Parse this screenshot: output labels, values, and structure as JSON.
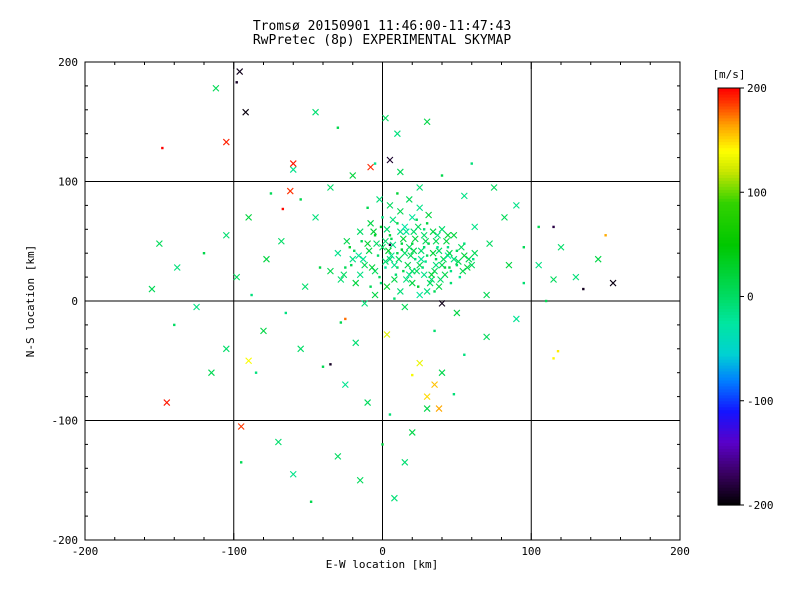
{
  "chart_data": {
    "type": "scatter",
    "title": "Tromsø 20150901 11:46:00-11:47:43",
    "subtitle": "RwPretec (8p) EXPERIMENTAL SKYMAP",
    "xlabel": "E-W location [km]",
    "ylabel": "N-S location [km]",
    "xlim": [
      -200,
      200
    ],
    "ylim": [
      -200,
      200
    ],
    "xticks": [
      -200,
      -100,
      0,
      100,
      200
    ],
    "yticks": [
      -200,
      -100,
      0,
      100,
      200
    ],
    "grid": true,
    "marker_types": {
      "x": "cross",
      "d": "dot"
    },
    "colorbar": {
      "label": "[m/s]",
      "min": -200,
      "max": 200,
      "ticks": [
        200,
        100,
        0,
        -100,
        -200
      ],
      "stops": [
        {
          "v": -200,
          "color": "#000000"
        },
        {
          "v": -170,
          "color": "#38005e"
        },
        {
          "v": -140,
          "color": "#5a00c8"
        },
        {
          "v": -110,
          "color": "#1414ff"
        },
        {
          "v": -80,
          "color": "#0080ff"
        },
        {
          "v": -55,
          "color": "#00d2d2"
        },
        {
          "v": -25,
          "color": "#00e6a0"
        },
        {
          "v": 0,
          "color": "#00dc64"
        },
        {
          "v": 50,
          "color": "#00c800"
        },
        {
          "v": 90,
          "color": "#32d200"
        },
        {
          "v": 120,
          "color": "#c8e600"
        },
        {
          "v": 140,
          "color": "#ffff00"
        },
        {
          "v": 165,
          "color": "#ffa000"
        },
        {
          "v": 185,
          "color": "#ff3c00"
        },
        {
          "v": 200,
          "color": "#ff0000"
        }
      ]
    },
    "points": [
      [
        -5,
        25,
        5,
        "x"
      ],
      [
        2,
        33,
        -5,
        "x"
      ],
      [
        10,
        28,
        10,
        "d"
      ],
      [
        15,
        40,
        0,
        "x"
      ],
      [
        8,
        18,
        15,
        "x"
      ],
      [
        22,
        35,
        -10,
        "d"
      ],
      [
        -12,
        30,
        8,
        "x"
      ],
      [
        0,
        45,
        2,
        "x"
      ],
      [
        5,
        55,
        20,
        "d"
      ],
      [
        18,
        22,
        -15,
        "x"
      ],
      [
        25,
        30,
        12,
        "x"
      ],
      [
        30,
        38,
        3,
        "d"
      ],
      [
        12,
        8,
        -8,
        "x"
      ],
      [
        20,
        15,
        18,
        "x"
      ],
      [
        -8,
        12,
        6,
        "d"
      ],
      [
        -15,
        22,
        -12,
        "x"
      ],
      [
        35,
        25,
        9,
        "x"
      ],
      [
        28,
        45,
        -3,
        "d"
      ],
      [
        14,
        52,
        22,
        "x"
      ],
      [
        6,
        38,
        -18,
        "x"
      ],
      [
        -2,
        20,
        4,
        "d"
      ],
      [
        40,
        30,
        11,
        "x"
      ],
      [
        33,
        18,
        -6,
        "x"
      ],
      [
        45,
        28,
        16,
        "d"
      ],
      [
        38,
        42,
        1,
        "x"
      ],
      [
        -20,
        35,
        -14,
        "x"
      ],
      [
        -25,
        28,
        7,
        "d"
      ],
      [
        -10,
        48,
        25,
        "x"
      ],
      [
        3,
        60,
        -2,
        "x"
      ],
      [
        10,
        65,
        13,
        "d"
      ],
      [
        16,
        58,
        -20,
        "x"
      ],
      [
        24,
        62,
        5,
        "x"
      ],
      [
        -5,
        55,
        30,
        "d"
      ],
      [
        48,
        35,
        -9,
        "x"
      ],
      [
        42,
        22,
        14,
        "x"
      ],
      [
        50,
        30,
        2,
        "d"
      ],
      [
        -30,
        40,
        -16,
        "x"
      ],
      [
        -18,
        15,
        19,
        "x"
      ],
      [
        8,
        2,
        -4,
        "d"
      ],
      [
        15,
        -5,
        10,
        "x"
      ],
      [
        25,
        5,
        -22,
        "x"
      ],
      [
        35,
        8,
        6,
        "d"
      ],
      [
        -5,
        5,
        17,
        "x"
      ],
      [
        -12,
        -2,
        -7,
        "x"
      ],
      [
        20,
        48,
        23,
        "d"
      ],
      [
        28,
        55,
        -1,
        "x"
      ],
      [
        36,
        50,
        8,
        "x"
      ],
      [
        44,
        45,
        -13,
        "d"
      ],
      [
        55,
        38,
        21,
        "x"
      ],
      [
        60,
        30,
        4,
        "x"
      ],
      [
        52,
        20,
        -19,
        "d"
      ],
      [
        -35,
        25,
        12,
        "x"
      ],
      [
        -28,
        18,
        -5,
        "x"
      ],
      [
        -22,
        45,
        27,
        "d"
      ],
      [
        -15,
        58,
        0,
        "x"
      ],
      [
        -8,
        65,
        15,
        "x"
      ],
      [
        0,
        70,
        -11,
        "d"
      ],
      [
        12,
        75,
        9,
        "x"
      ],
      [
        20,
        70,
        -24,
        "x"
      ],
      [
        30,
        65,
        18,
        "d"
      ],
      [
        5,
        80,
        3,
        "x"
      ],
      [
        -2,
        85,
        -8,
        "x"
      ],
      [
        10,
        90,
        24,
        "d"
      ],
      [
        18,
        85,
        6,
        "x"
      ],
      [
        25,
        78,
        -15,
        "x"
      ],
      [
        -10,
        78,
        11,
        "d"
      ],
      [
        40,
        60,
        -3,
        "x"
      ],
      [
        48,
        55,
        20,
        "x"
      ],
      [
        55,
        48,
        -10,
        "d"
      ],
      [
        62,
        40,
        7,
        "x"
      ],
      [
        3,
        12,
        28,
        "x"
      ],
      [
        9,
        22,
        -6,
        "d"
      ],
      [
        17,
        30,
        13,
        "x"
      ],
      [
        23,
        25,
        2,
        "x"
      ],
      [
        29,
        33,
        -17,
        "d"
      ],
      [
        34,
        40,
        22,
        "x"
      ],
      [
        41,
        35,
        5,
        "x"
      ],
      [
        -3,
        38,
        -2,
        "d"
      ],
      [
        -9,
        42,
        16,
        "x"
      ],
      [
        -16,
        38,
        -21,
        "x"
      ],
      [
        -21,
        30,
        10,
        "d"
      ],
      [
        -26,
        22,
        1,
        "x"
      ],
      [
        7,
        47,
        -12,
        "x"
      ],
      [
        13,
        43,
        26,
        "d"
      ],
      [
        19,
        38,
        8,
        "x"
      ],
      [
        26,
        42,
        -4,
        "x"
      ],
      [
        31,
        48,
        14,
        "d"
      ],
      [
        37,
        55,
        -9,
        "x"
      ],
      [
        43,
        50,
        19,
        "x"
      ],
      [
        2,
        28,
        -25,
        "d"
      ],
      [
        11,
        35,
        4,
        "x"
      ],
      [
        21,
        42,
        12,
        "x"
      ],
      [
        27,
        28,
        -7,
        "d"
      ],
      [
        33,
        22,
        23,
        "x"
      ],
      [
        39,
        18,
        0,
        "x"
      ],
      [
        46,
        25,
        -14,
        "d"
      ],
      [
        51,
        33,
        9,
        "x"
      ],
      [
        57,
        28,
        17,
        "x"
      ],
      [
        -1,
        15,
        -5,
        "d"
      ],
      [
        -7,
        28,
        21,
        "x"
      ],
      [
        -13,
        35,
        -18,
        "x"
      ],
      [
        -19,
        42,
        6,
        "d"
      ],
      [
        -24,
        50,
        13,
        "x"
      ],
      [
        16,
        18,
        -10,
        "x"
      ],
      [
        24,
        12,
        25,
        "d"
      ],
      [
        32,
        15,
        2,
        "x"
      ],
      [
        8,
        30,
        -16,
        "x"
      ],
      [
        14,
        25,
        11,
        "d"
      ],
      [
        4,
        42,
        29,
        "x"
      ],
      [
        -4,
        48,
        -1,
        "x"
      ],
      [
        6,
        52,
        7,
        "d"
      ],
      [
        12,
        58,
        -13,
        "x"
      ],
      [
        22,
        52,
        18,
        "x"
      ],
      [
        28,
        60,
        -6,
        "d"
      ],
      [
        34,
        58,
        15,
        "x"
      ],
      [
        44,
        38,
        -23,
        "x"
      ],
      [
        50,
        42,
        3,
        "d"
      ],
      [
        58,
        35,
        10,
        "x"
      ],
      [
        36,
        30,
        -8,
        "x"
      ],
      [
        42,
        28,
        20,
        "d"
      ],
      [
        18,
        45,
        5,
        "x"
      ],
      [
        26,
        35,
        -19,
        "x"
      ],
      [
        10,
        40,
        14,
        "d"
      ],
      [
        2,
        50,
        -2,
        "x"
      ],
      [
        -6,
        58,
        24,
        "x"
      ],
      [
        -14,
        50,
        8,
        "d"
      ],
      [
        30,
        8,
        -11,
        "x"
      ],
      [
        38,
        12,
        16,
        "x"
      ],
      [
        46,
        15,
        -4,
        "d"
      ],
      [
        54,
        25,
        12,
        "x"
      ],
      [
        15,
        62,
        -26,
        "x"
      ],
      [
        23,
        68,
        6,
        "d"
      ],
      [
        31,
        72,
        19,
        "x"
      ],
      [
        7,
        68,
        -9,
        "x"
      ],
      [
        -1,
        62,
        27,
        "d"
      ],
      [
        20,
        25,
        1,
        "x"
      ],
      [
        28,
        22,
        -15,
        "x"
      ],
      [
        36,
        35,
        10,
        "d"
      ],
      [
        44,
        55,
        22,
        "x"
      ],
      [
        5,
        35,
        -7,
        "x"
      ],
      [
        13,
        48,
        17,
        "d"
      ],
      [
        21,
        58,
        -3,
        "x"
      ],
      [
        29,
        50,
        9,
        "x"
      ],
      [
        37,
        45,
        -20,
        "d"
      ],
      [
        45,
        40,
        13,
        "x"
      ],
      [
        53,
        45,
        4,
        "x"
      ],
      [
        61,
        35,
        -12,
        "d"
      ],
      [
        -112,
        178,
        8,
        "x"
      ],
      [
        -45,
        158,
        -5,
        "x"
      ],
      [
        -30,
        145,
        12,
        "d"
      ],
      [
        2,
        153,
        3,
        "x"
      ],
      [
        10,
        140,
        -10,
        "x"
      ],
      [
        30,
        150,
        15,
        "x"
      ],
      [
        60,
        115,
        -8,
        "d"
      ],
      [
        75,
        95,
        5,
        "x"
      ],
      [
        90,
        80,
        -14,
        "x"
      ],
      [
        105,
        62,
        9,
        "d"
      ],
      [
        120,
        45,
        -2,
        "x"
      ],
      [
        85,
        30,
        18,
        "x"
      ],
      [
        95,
        15,
        -6,
        "d"
      ],
      [
        70,
        5,
        11,
        "x"
      ],
      [
        -60,
        110,
        -16,
        "x"
      ],
      [
        -75,
        90,
        7,
        "d"
      ],
      [
        -90,
        70,
        20,
        "x"
      ],
      [
        -105,
        55,
        -4,
        "x"
      ],
      [
        -120,
        40,
        13,
        "d"
      ],
      [
        -138,
        28,
        -9,
        "x"
      ],
      [
        -150,
        48,
        6,
        "x"
      ],
      [
        -65,
        -10,
        -12,
        "d"
      ],
      [
        -80,
        -25,
        16,
        "x"
      ],
      [
        -55,
        -40,
        -1,
        "x"
      ],
      [
        -40,
        -55,
        10,
        "d"
      ],
      [
        -25,
        -70,
        -18,
        "x"
      ],
      [
        -10,
        -85,
        4,
        "x"
      ],
      [
        5,
        -95,
        -7,
        "d"
      ],
      [
        20,
        -110,
        14,
        "x"
      ],
      [
        -70,
        -118,
        -3,
        "x"
      ],
      [
        -95,
        -135,
        8,
        "d"
      ],
      [
        -60,
        -145,
        -15,
        "x"
      ],
      [
        -30,
        -130,
        2,
        "x"
      ],
      [
        0,
        -120,
        19,
        "d"
      ],
      [
        15,
        -135,
        -5,
        "x"
      ],
      [
        40,
        -60,
        12,
        "x"
      ],
      [
        55,
        -45,
        -11,
        "d"
      ],
      [
        70,
        -30,
        5,
        "x"
      ],
      [
        90,
        -15,
        -20,
        "x"
      ],
      [
        110,
        0,
        9,
        "d"
      ],
      [
        130,
        20,
        -8,
        "x"
      ],
      [
        145,
        35,
        15,
        "x"
      ],
      [
        -140,
        -20,
        1,
        "d"
      ],
      [
        -125,
        -5,
        -13,
        "x"
      ],
      [
        -155,
        10,
        7,
        "x"
      ],
      [
        35,
        -25,
        -4,
        "d"
      ],
      [
        50,
        -10,
        17,
        "x"
      ],
      [
        -45,
        70,
        -9,
        "x"
      ],
      [
        -55,
        85,
        11,
        "d"
      ],
      [
        -35,
        95,
        -2,
        "x"
      ],
      [
        -20,
        105,
        21,
        "x"
      ],
      [
        -5,
        115,
        -17,
        "d"
      ],
      [
        12,
        108,
        6,
        "x"
      ],
      [
        25,
        95,
        -6,
        "x"
      ],
      [
        40,
        105,
        13,
        "d"
      ],
      [
        55,
        88,
        -14,
        "x"
      ],
      [
        -98,
        20,
        3,
        "x"
      ],
      [
        -88,
        5,
        -10,
        "d"
      ],
      [
        -78,
        35,
        18,
        "x"
      ],
      [
        -68,
        50,
        -1,
        "x"
      ],
      [
        95,
        45,
        8,
        "d"
      ],
      [
        105,
        30,
        -12,
        "x"
      ],
      [
        115,
        18,
        4,
        "x"
      ],
      [
        48,
        -78,
        -8,
        "d"
      ],
      [
        30,
        -90,
        14,
        "x"
      ],
      [
        -18,
        -35,
        -5,
        "x"
      ],
      [
        -28,
        -18,
        10,
        "d"
      ],
      [
        62,
        62,
        -15,
        "x"
      ],
      [
        72,
        48,
        2,
        "x"
      ],
      [
        -42,
        28,
        16,
        "d"
      ],
      [
        -52,
        12,
        -3,
        "x"
      ],
      [
        82,
        70,
        7,
        "x"
      ],
      [
        -85,
        -60,
        -11,
        "d"
      ],
      [
        -15,
        -150,
        5,
        "x"
      ],
      [
        8,
        -165,
        -7,
        "x"
      ],
      [
        -48,
        -168,
        12,
        "d"
      ],
      [
        -105,
        -40,
        -2,
        "x"
      ],
      [
        -115,
        -60,
        9,
        "x"
      ],
      [
        -148,
        128,
        200,
        "d"
      ],
      [
        -105,
        133,
        192,
        "x"
      ],
      [
        -98,
        183,
        -188,
        "d"
      ],
      [
        -92,
        158,
        -196,
        "x"
      ],
      [
        -96,
        192,
        -192,
        "x"
      ],
      [
        -60,
        115,
        195,
        "x"
      ],
      [
        -62,
        92,
        188,
        "x"
      ],
      [
        -67,
        77,
        198,
        "d"
      ],
      [
        -8,
        112,
        190,
        "x"
      ],
      [
        5,
        118,
        -186,
        "x"
      ],
      [
        40,
        -2,
        -192,
        "x"
      ],
      [
        5,
        47,
        -182,
        "d"
      ],
      [
        -25,
        -15,
        175,
        "d"
      ],
      [
        -90,
        -50,
        138,
        "x"
      ],
      [
        -145,
        -85,
        194,
        "x"
      ],
      [
        -95,
        -105,
        186,
        "x"
      ],
      [
        115,
        62,
        -178,
        "d"
      ],
      [
        135,
        10,
        -190,
        "d"
      ],
      [
        155,
        15,
        -194,
        "x"
      ],
      [
        150,
        55,
        162,
        "d"
      ],
      [
        115,
        -48,
        142,
        "d"
      ],
      [
        25,
        -52,
        132,
        "x"
      ],
      [
        35,
        -70,
        156,
        "x"
      ],
      [
        30,
        -80,
        150,
        "x"
      ],
      [
        38,
        -90,
        163,
        "x"
      ],
      [
        20,
        -62,
        137,
        "d"
      ],
      [
        3,
        -28,
        128,
        "x"
      ],
      [
        -35,
        -53,
        -188,
        "d"
      ],
      [
        118,
        -42,
        145,
        "d"
      ]
    ]
  }
}
